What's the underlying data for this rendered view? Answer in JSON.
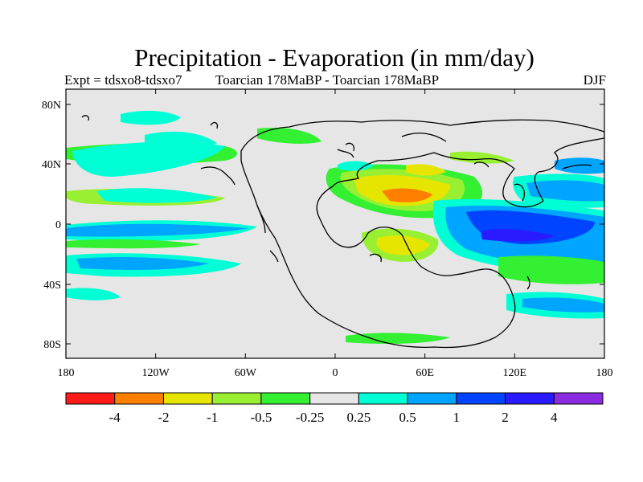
{
  "title": "Precipitation - Evaporation (in mm/day)",
  "left_subtitle": "Expt = tdsxo8-tdsxo7",
  "center_subtitle": "Toarcian 178MaBP - Toarcian 178MaBP",
  "right_subtitle": "DJF",
  "colors": {
    "background": "#e6e6e6",
    "coast": "#000000"
  },
  "lat_labels": [
    "80N",
    "40N",
    "0",
    "40S",
    "80S"
  ],
  "lon_labels": [
    "180",
    "120W",
    "60W",
    "0",
    "60E",
    "120E",
    "180"
  ],
  "colorbar": {
    "colors": [
      "#ff1a1a",
      "#ff7f00",
      "#e5e500",
      "#99f033",
      "#33f033",
      "#e6e6e6",
      "#00ffd5",
      "#00a5ff",
      "#0044ff",
      "#2a1aff",
      "#8a2be2"
    ],
    "labels": [
      "-4",
      "-2",
      "-1",
      "-0.5",
      "-0.25",
      "0.25",
      "0.5",
      "1",
      "2",
      "4"
    ]
  }
}
